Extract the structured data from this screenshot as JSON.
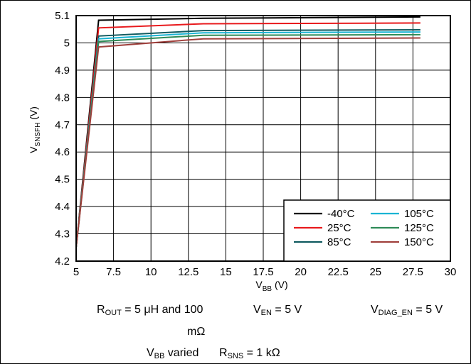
{
  "chart_data": {
    "type": "line",
    "xlabel": {
      "main": "V",
      "sub": "BB",
      "unit": " (V)"
    },
    "ylabel": {
      "main": "V",
      "sub": "SNSFH",
      "unit": " (V)"
    },
    "xlim": [
      5,
      30
    ],
    "ylim": [
      4.2,
      5.1
    ],
    "xticks": [
      5,
      7.5,
      10,
      12.5,
      15,
      17.5,
      20,
      22.5,
      25,
      27.5,
      30
    ],
    "xtick_labels": [
      "5",
      "7.5",
      "10",
      "12.5",
      "15",
      "17.5",
      "20",
      "22.5",
      "25",
      "27.5",
      "30"
    ],
    "yticks": [
      4.2,
      4.3,
      4.4,
      4.5,
      4.6,
      4.7,
      4.8,
      4.9,
      5,
      5.1
    ],
    "ytick_labels": [
      "4.2",
      "4.3",
      "4.4",
      "4.5",
      "4.6",
      "4.7",
      "4.8",
      "4.9",
      "5",
      "5.1"
    ],
    "grid": true,
    "legend_position": "bottom-right",
    "series": [
      {
        "name": "-40°C",
        "color": "#000000",
        "points": [
          [
            5,
            4.25
          ],
          [
            6.5,
            5.083
          ],
          [
            13.5,
            5.09
          ],
          [
            28,
            5.095
          ]
        ]
      },
      {
        "name": "25°C",
        "color": "#e8191c",
        "points": [
          [
            5,
            4.25
          ],
          [
            6.5,
            5.055
          ],
          [
            13.5,
            5.07
          ],
          [
            28,
            5.073
          ]
        ]
      },
      {
        "name": "85°C",
        "color": "#0f5a5f",
        "points": [
          [
            5,
            4.25
          ],
          [
            6.5,
            5.025
          ],
          [
            13.5,
            5.045
          ],
          [
            28,
            5.048
          ]
        ]
      },
      {
        "name": "105°C",
        "color": "#1ab4d4",
        "points": [
          [
            5,
            4.25
          ],
          [
            6.5,
            5.015
          ],
          [
            13.5,
            5.037
          ],
          [
            28,
            5.04
          ]
        ]
      },
      {
        "name": "125°C",
        "color": "#2e8b57",
        "points": [
          [
            5,
            4.25
          ],
          [
            6.5,
            5.005
          ],
          [
            13.5,
            5.028
          ],
          [
            28,
            5.03
          ]
        ]
      },
      {
        "name": "150°C",
        "color": "#a0403c",
        "points": [
          [
            5,
            4.25
          ],
          [
            6.5,
            4.985
          ],
          [
            13.5,
            5.015
          ],
          [
            28,
            5.018
          ]
        ]
      }
    ]
  },
  "caption": {
    "rout": {
      "main": "R",
      "sub": "OUT",
      "rest": " = 5 μH and 100"
    },
    "rout_cont": "mΩ",
    "ven": {
      "main": "V",
      "sub": "EN",
      "rest": " = 5 V"
    },
    "vdiag": {
      "main": "V",
      "sub": "DIAG_EN",
      "rest": " = 5 V"
    },
    "vbb": {
      "main": "V",
      "sub": "BB",
      "rest": " varied"
    },
    "rsns": {
      "main": "R",
      "sub": "SNS",
      "rest": " = 1 kΩ"
    }
  }
}
